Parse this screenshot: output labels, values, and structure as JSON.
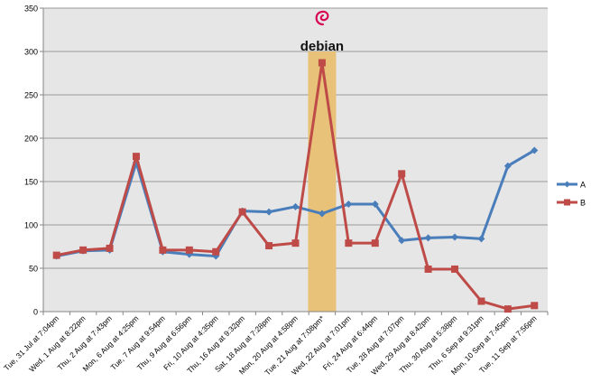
{
  "chart_data": {
    "type": "line",
    "title": "",
    "xlabel": "",
    "ylabel": "",
    "ylim": [
      0,
      350
    ],
    "yticks": [
      0,
      50,
      100,
      150,
      200,
      250,
      300,
      350
    ],
    "grid": true,
    "legend_position": "right",
    "categories": [
      "Tue, 31 Jul at 7:04pm",
      "Wed, 1 Aug at 8:22pm",
      "Thu, 2 Aug at 7:43pm",
      "Mon, 6 Aug at 4:25pm",
      "Tue, 7 Aug at 9:54pm",
      "Thu, 9 Aug at 6:56pm",
      "Fri, 10 Aug at 4:35pm",
      "Thu, 16 Aug at 9:32pm",
      "Sat, 18 Aug at 7:28pm",
      "Mon, 20 Aug at 4:58pm",
      "Tue, 21 Aug at 7:08pm*",
      "Wed, 22 Aug at 7:01pm",
      "Fri, 24 Aug at 6:44pm",
      "Tue, 28 Aug at 7:07pm",
      "Wed, 29 Aug at 8:42pm",
      "Thu, 30 Aug at 5:38pm",
      "Thu, 6 Sep at 9:31pm",
      "Mon, 10 Sep at 7:45pm",
      "Tue, 11 Sep at 7:56pm"
    ],
    "series": [
      {
        "name": "A",
        "color": "#4a7ebb",
        "marker": "diamond",
        "values": [
          64,
          70,
          71,
          172,
          69,
          66,
          64,
          116,
          115,
          121,
          113,
          124,
          124,
          82,
          85,
          86,
          84,
          168,
          186
        ]
      },
      {
        "name": "B",
        "color": "#be4b48",
        "marker": "square",
        "values": [
          65,
          71,
          73,
          179,
          71,
          71,
          69,
          115,
          76,
          79,
          287,
          79,
          79,
          159,
          49,
          49,
          12,
          3,
          7
        ]
      }
    ],
    "highlight": {
      "category_index": 10,
      "color": "#e8c278",
      "logo_icon": "debian-swirl-icon",
      "logo_text": "debian",
      "logo_color": "#d70a53"
    },
    "plot_background": "#e6e6e6",
    "grid_color": "#9a9a9a"
  }
}
